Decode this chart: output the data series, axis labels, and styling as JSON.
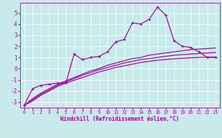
{
  "background_color": "#c8eaea",
  "grid_color": "#b0d8d8",
  "line_color": "#aa00aa",
  "xlabel": "Windchill (Refroidissement éolien,°C)",
  "xlim": [
    -0.5,
    23.5
  ],
  "ylim": [
    -3.5,
    5.9
  ],
  "yticks": [
    -3,
    -2,
    -1,
    0,
    1,
    2,
    3,
    4,
    5
  ],
  "xticks": [
    0,
    1,
    2,
    3,
    4,
    5,
    6,
    7,
    8,
    9,
    10,
    11,
    12,
    13,
    14,
    15,
    16,
    17,
    18,
    19,
    20,
    21,
    22,
    23
  ],
  "line1_x": [
    0,
    1,
    2,
    3,
    4,
    5,
    6,
    7,
    8,
    9,
    10,
    11,
    12,
    13,
    14,
    15,
    16,
    17,
    18,
    19,
    20,
    21,
    22,
    23
  ],
  "line1_y": [
    -3.3,
    -1.8,
    -1.5,
    -1.4,
    -1.3,
    -1.3,
    1.3,
    0.8,
    1.0,
    1.1,
    1.5,
    2.4,
    2.6,
    4.1,
    4.0,
    4.4,
    5.5,
    4.8,
    2.5,
    2.0,
    1.9,
    1.5,
    1.0,
    1.0
  ],
  "ref_line1_x": [
    0,
    1,
    2,
    3,
    4,
    5,
    6,
    7,
    8,
    9,
    10,
    11,
    12,
    13,
    14,
    15,
    16,
    17,
    18,
    19,
    20,
    21,
    22,
    23
  ],
  "ref_line1_y": [
    -3.3,
    -2.7,
    -2.2,
    -1.8,
    -1.4,
    -1.1,
    -0.8,
    -0.5,
    -0.2,
    0.0,
    0.3,
    0.5,
    0.7,
    0.9,
    1.0,
    1.2,
    1.3,
    1.4,
    1.5,
    1.6,
    1.7,
    1.75,
    1.8,
    1.85
  ],
  "ref_line2_x": [
    0,
    1,
    2,
    3,
    4,
    5,
    6,
    7,
    8,
    9,
    10,
    11,
    12,
    13,
    14,
    15,
    16,
    17,
    18,
    19,
    20,
    21,
    22,
    23
  ],
  "ref_line2_y": [
    -3.3,
    -2.8,
    -2.3,
    -1.9,
    -1.5,
    -1.2,
    -0.9,
    -0.6,
    -0.35,
    -0.1,
    0.1,
    0.3,
    0.5,
    0.65,
    0.8,
    0.9,
    1.0,
    1.1,
    1.2,
    1.25,
    1.3,
    1.35,
    1.4,
    1.45
  ],
  "ref_line3_x": [
    0,
    1,
    2,
    3,
    4,
    5,
    6,
    7,
    8,
    9,
    10,
    11,
    12,
    13,
    14,
    15,
    16,
    17,
    18,
    19,
    20,
    21,
    22,
    23
  ],
  "ref_line3_y": [
    -3.3,
    -2.9,
    -2.4,
    -2.0,
    -1.6,
    -1.3,
    -1.05,
    -0.8,
    -0.55,
    -0.3,
    -0.1,
    0.1,
    0.25,
    0.4,
    0.55,
    0.65,
    0.75,
    0.82,
    0.88,
    0.93,
    0.97,
    1.0,
    1.02,
    1.04
  ],
  "xlabel_fontsize": 5.5,
  "tick_fontsize": 5.5
}
